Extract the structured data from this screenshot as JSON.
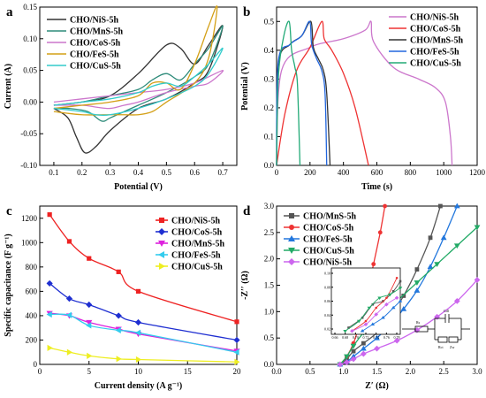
{
  "chart_data": [
    {
      "type": "line",
      "panel_label": "a",
      "xlabel": "Potential (V)",
      "ylabel": "Current (A)",
      "xlim": [
        0.05,
        0.75
      ],
      "ylim": [
        -0.1,
        0.15
      ],
      "x_ticks": [
        "0.1",
        "0.2",
        "0.3",
        "0.4",
        "0.5",
        "0.6",
        "0.7"
      ],
      "y_ticks": [
        "-0.10",
        "-0.05",
        "0.00",
        "0.05",
        "0.10",
        "0.15"
      ],
      "legend_position": "top-left",
      "series": [
        {
          "name": "CHO/NiS-5h",
          "color": "#333333",
          "points": [
            [
              0.1,
              -0.005
            ],
            [
              0.2,
              0.0
            ],
            [
              0.3,
              0.01
            ],
            [
              0.4,
              0.045
            ],
            [
              0.5,
              0.09
            ],
            [
              0.55,
              0.085
            ],
            [
              0.6,
              0.06
            ],
            [
              0.65,
              0.09
            ],
            [
              0.7,
              0.12
            ],
            [
              0.65,
              0.05
            ],
            [
              0.6,
              0.03
            ],
            [
              0.5,
              0.005
            ],
            [
              0.4,
              -0.01
            ],
            [
              0.3,
              -0.045
            ],
            [
              0.25,
              -0.07
            ],
            [
              0.21,
              -0.08
            ],
            [
              0.18,
              -0.055
            ],
            [
              0.15,
              -0.025
            ],
            [
              0.1,
              -0.01
            ]
          ]
        },
        {
          "name": "CHO/MnS-5h",
          "color": "#2e8b7a",
          "points": [
            [
              0.1,
              -0.005
            ],
            [
              0.2,
              0.0
            ],
            [
              0.3,
              0.01
            ],
            [
              0.4,
              0.02
            ],
            [
              0.45,
              0.035
            ],
            [
              0.5,
              0.045
            ],
            [
              0.55,
              0.035
            ],
            [
              0.6,
              0.06
            ],
            [
              0.65,
              0.085
            ],
            [
              0.7,
              0.12
            ],
            [
              0.65,
              0.06
            ],
            [
              0.6,
              0.04
            ],
            [
              0.5,
              0.015
            ],
            [
              0.4,
              -0.005
            ],
            [
              0.35,
              -0.015
            ],
            [
              0.3,
              -0.025
            ],
            [
              0.27,
              -0.03
            ],
            [
              0.22,
              -0.015
            ],
            [
              0.15,
              -0.01
            ],
            [
              0.1,
              -0.01
            ]
          ]
        },
        {
          "name": "CHO/CoS-5h",
          "color": "#cc77cc",
          "points": [
            [
              0.1,
              0.0
            ],
            [
              0.2,
              0.005
            ],
            [
              0.3,
              0.01
            ],
            [
              0.4,
              0.015
            ],
            [
              0.5,
              0.02
            ],
            [
              0.6,
              0.03
            ],
            [
              0.7,
              0.05
            ],
            [
              0.65,
              0.03
            ],
            [
              0.6,
              0.025
            ],
            [
              0.5,
              0.015
            ],
            [
              0.4,
              0.0
            ],
            [
              0.35,
              -0.005
            ],
            [
              0.3,
              -0.01
            ],
            [
              0.25,
              -0.008
            ],
            [
              0.2,
              -0.005
            ],
            [
              0.1,
              -0.005
            ]
          ]
        },
        {
          "name": "CHO/FeS-5h",
          "color": "#d4a017",
          "points": [
            [
              0.1,
              -0.01
            ],
            [
              0.2,
              -0.005
            ],
            [
              0.3,
              0.0
            ],
            [
              0.4,
              0.01
            ],
            [
              0.45,
              0.03
            ],
            [
              0.5,
              0.03
            ],
            [
              0.55,
              0.02
            ],
            [
              0.6,
              0.06
            ],
            [
              0.65,
              0.12
            ],
            [
              0.68,
              0.15
            ],
            [
              0.65,
              0.07
            ],
            [
              0.6,
              0.03
            ],
            [
              0.5,
              0.0
            ],
            [
              0.45,
              -0.015
            ],
            [
              0.4,
              -0.02
            ],
            [
              0.35,
              -0.02
            ],
            [
              0.3,
              -0.02
            ],
            [
              0.2,
              -0.02
            ],
            [
              0.1,
              -0.015
            ]
          ]
        },
        {
          "name": "CHO/CuS-5h",
          "color": "#33cccc",
          "points": [
            [
              0.1,
              -0.005
            ],
            [
              0.2,
              0.0
            ],
            [
              0.3,
              0.005
            ],
            [
              0.4,
              0.015
            ],
            [
              0.45,
              0.025
            ],
            [
              0.5,
              0.03
            ],
            [
              0.55,
              0.025
            ],
            [
              0.6,
              0.04
            ],
            [
              0.65,
              0.06
            ],
            [
              0.7,
              0.085
            ],
            [
              0.65,
              0.045
            ],
            [
              0.6,
              0.025
            ],
            [
              0.5,
              0.005
            ],
            [
              0.4,
              -0.01
            ],
            [
              0.3,
              -0.02
            ],
            [
              0.25,
              -0.02
            ],
            [
              0.2,
              -0.015
            ],
            [
              0.1,
              -0.01
            ]
          ]
        }
      ]
    },
    {
      "type": "line",
      "panel_label": "b",
      "xlabel": "Time (s)",
      "ylabel": "Potential (V)",
      "xlim": [
        0,
        1200
      ],
      "ylim": [
        0.0,
        0.55
      ],
      "x_ticks": [
        "0",
        "200",
        "400",
        "600",
        "800",
        "1000",
        "1200"
      ],
      "y_ticks": [
        "0.0",
        "0.1",
        "0.2",
        "0.3",
        "0.4",
        "0.5"
      ],
      "legend_position": "top-right",
      "series": [
        {
          "name": "CHO/NiS-5h",
          "color": "#cc77cc",
          "points": [
            [
              0,
              0.0
            ],
            [
              30,
              0.33
            ],
            [
              200,
              0.41
            ],
            [
              400,
              0.44
            ],
            [
              530,
              0.47
            ],
            [
              565,
              0.5
            ],
            [
              580,
              0.43
            ],
            [
              700,
              0.34
            ],
            [
              850,
              0.3
            ],
            [
              950,
              0.27
            ],
            [
              1010,
              0.22
            ],
            [
              1040,
              0.1
            ],
            [
              1050,
              0.0
            ]
          ]
        },
        {
          "name": "CHO/CoS-5h",
          "color": "#ee3333",
          "points": [
            [
              0,
              0.0
            ],
            [
              50,
              0.18
            ],
            [
              120,
              0.33
            ],
            [
              200,
              0.41
            ],
            [
              270,
              0.5
            ],
            [
              285,
              0.44
            ],
            [
              330,
              0.4
            ],
            [
              400,
              0.32
            ],
            [
              470,
              0.2
            ],
            [
              550,
              0.0
            ]
          ]
        },
        {
          "name": "CHO/MnS-5h",
          "color": "#333333",
          "points": [
            [
              0,
              0.0
            ],
            [
              10,
              0.35
            ],
            [
              80,
              0.42
            ],
            [
              150,
              0.45
            ],
            [
              205,
              0.5
            ],
            [
              220,
              0.41
            ],
            [
              250,
              0.37
            ],
            [
              280,
              0.33
            ],
            [
              300,
              0.25
            ],
            [
              320,
              0.0
            ]
          ]
        },
        {
          "name": "CHO/FeS-5h",
          "color": "#2266dd",
          "points": [
            [
              0,
              0.0
            ],
            [
              10,
              0.36
            ],
            [
              80,
              0.42
            ],
            [
              150,
              0.45
            ],
            [
              198,
              0.5
            ],
            [
              210,
              0.42
            ],
            [
              240,
              0.37
            ],
            [
              270,
              0.33
            ],
            [
              290,
              0.25
            ],
            [
              300,
              0.0
            ]
          ]
        },
        {
          "name": "CHO/CuS-5h",
          "color": "#22aa77",
          "points": [
            [
              0,
              0.0
            ],
            [
              10,
              0.3
            ],
            [
              40,
              0.44
            ],
            [
              75,
              0.5
            ],
            [
              90,
              0.4
            ],
            [
              110,
              0.34
            ],
            [
              125,
              0.28
            ],
            [
              140,
              0.0
            ]
          ]
        }
      ]
    },
    {
      "type": "scatter",
      "panel_label": "c",
      "xlabel": "Current density (A g⁻¹)",
      "ylabel": "Specific capacitance (F g⁻¹)",
      "xlim": [
        0,
        20
      ],
      "ylim": [
        0,
        1300
      ],
      "x_ticks": [
        "0",
        "5",
        "10",
        "15",
        "20"
      ],
      "y_ticks": [
        "0",
        "200",
        "400",
        "600",
        "800",
        "1000",
        "1200"
      ],
      "legend_position": "top-right",
      "series": [
        {
          "name": "CHO/NiS-5h",
          "color": "#ee2222",
          "marker": "square",
          "x": [
            1,
            3,
            5,
            8,
            10,
            20
          ],
          "values": [
            1230,
            1010,
            870,
            760,
            600,
            350
          ]
        },
        {
          "name": "CHO/CoS-5h",
          "color": "#1f2fd1",
          "marker": "diamond",
          "x": [
            1,
            3,
            5,
            8,
            10,
            20
          ],
          "values": [
            665,
            540,
            490,
            400,
            345,
            200
          ]
        },
        {
          "name": "CHO/MnS-5h",
          "color": "#dd22dd",
          "marker": "triangle-down",
          "x": [
            1,
            3,
            5,
            8,
            10,
            20
          ],
          "values": [
            420,
            400,
            345,
            290,
            250,
            110
          ]
        },
        {
          "name": "CHO/FeS-5h",
          "color": "#33ccee",
          "marker": "triangle-left",
          "x": [
            1,
            3,
            5,
            8,
            10,
            20
          ],
          "values": [
            410,
            405,
            320,
            280,
            260,
            100
          ]
        },
        {
          "name": "CHO/CuS-5h",
          "color": "#eeee22",
          "marker": "triangle-right",
          "x": [
            1,
            3,
            5,
            8,
            10,
            20
          ],
          "values": [
            135,
            100,
            70,
            45,
            40,
            20
          ]
        }
      ]
    },
    {
      "type": "scatter",
      "panel_label": "d",
      "xlabel": "Z′ (Ω)",
      "ylabel": "-Z′′ (Ω)",
      "xlim": [
        0.0,
        3.0
      ],
      "ylim": [
        0.0,
        3.0
      ],
      "x_ticks": [
        "0.0",
        "0.5",
        "1.0",
        "1.5",
        "2.0",
        "2.5",
        "3.0"
      ],
      "y_ticks": [
        "0.0",
        "0.5",
        "1.0",
        "1.5",
        "2.0",
        "2.5",
        "3.0"
      ],
      "legend_position": "top-left",
      "inset": {
        "x_ticks": [
          "0.66",
          "0.68",
          "0.70",
          "0.72",
          "0.74",
          "0.76",
          "0.78"
        ],
        "y_ticks": [
          "0.02",
          "0.04",
          "0.06",
          "0.08",
          "0.10"
        ]
      },
      "circuit_labels": [
        "Rs",
        "Cdl",
        "Rct",
        "Zw"
      ],
      "series": [
        {
          "name": "CHO/MnS-5h",
          "color": "#555555",
          "marker": "square",
          "points": [
            [
              0.95,
              0.0
            ],
            [
              1.05,
              0.1
            ],
            [
              1.15,
              0.25
            ],
            [
              1.3,
              0.4
            ],
            [
              1.5,
              0.6
            ],
            [
              1.7,
              0.9
            ],
            [
              1.9,
              1.3
            ],
            [
              2.1,
              1.8
            ],
            [
              2.3,
              2.4
            ],
            [
              2.45,
              3.0
            ]
          ]
        },
        {
          "name": "CHO/CoS-5h",
          "color": "#ee3333",
          "marker": "circle",
          "points": [
            [
              0.95,
              0.0
            ],
            [
              1.05,
              0.15
            ],
            [
              1.15,
              0.4
            ],
            [
              1.25,
              0.8
            ],
            [
              1.35,
              1.3
            ],
            [
              1.45,
              1.9
            ],
            [
              1.55,
              2.5
            ],
            [
              1.62,
              3.0
            ]
          ]
        },
        {
          "name": "CHO/FeS-5h",
          "color": "#2277dd",
          "marker": "triangle-up",
          "points": [
            [
              0.95,
              0.0
            ],
            [
              1.05,
              0.05
            ],
            [
              1.15,
              0.15
            ],
            [
              1.3,
              0.3
            ],
            [
              1.5,
              0.5
            ],
            [
              1.7,
              0.75
            ],
            [
              1.9,
              1.05
            ],
            [
              2.1,
              1.4
            ],
            [
              2.3,
              1.85
            ],
            [
              2.5,
              2.4
            ],
            [
              2.7,
              3.0
            ]
          ]
        },
        {
          "name": "CHO/CuS-5h",
          "color": "#22aa66",
          "marker": "triangle-down",
          "points": [
            [
              0.95,
              0.0
            ],
            [
              1.05,
              0.15
            ],
            [
              1.15,
              0.35
            ],
            [
              1.3,
              0.6
            ],
            [
              1.5,
              0.85
            ],
            [
              1.8,
              1.2
            ],
            [
              2.1,
              1.55
            ],
            [
              2.4,
              1.9
            ],
            [
              2.7,
              2.25
            ],
            [
              3.0,
              2.6
            ]
          ]
        },
        {
          "name": "CHO/NiS-5h",
          "color": "#cc66ee",
          "marker": "diamond",
          "points": [
            [
              0.95,
              0.0
            ],
            [
              1.05,
              0.04
            ],
            [
              1.15,
              0.1
            ],
            [
              1.3,
              0.2
            ],
            [
              1.5,
              0.3
            ],
            [
              1.8,
              0.45
            ],
            [
              2.1,
              0.65
            ],
            [
              2.4,
              0.9
            ],
            [
              2.7,
              1.2
            ],
            [
              3.0,
              1.6
            ]
          ]
        }
      ]
    }
  ]
}
